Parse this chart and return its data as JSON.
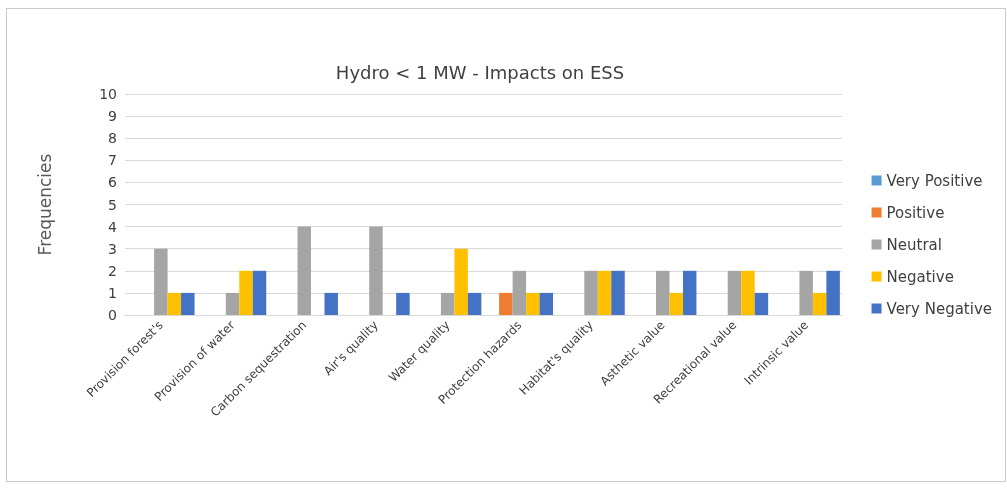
{
  "chart_data": {
    "type": "bar",
    "title": "Hydro < 1 MW - Impacts on ESS",
    "ylabel": "Frequencies",
    "categories": [
      "Provision forest's",
      "Provision of water",
      "Carbon sequestration",
      "Air's quality",
      "Water quality",
      "Protection hazards",
      "Habitat's quality",
      "Asthetic value",
      "Recreational value",
      "Intrinsic value"
    ],
    "series": [
      {
        "name": "Very Positive",
        "color": "#5b9bd5",
        "values": [
          0,
          0,
          0,
          0,
          0,
          0,
          0,
          0,
          0,
          0
        ]
      },
      {
        "name": "Positive",
        "color": "#ed7d31",
        "values": [
          0,
          0,
          0,
          0,
          0,
          1,
          0,
          0,
          0,
          0
        ]
      },
      {
        "name": "Neutral",
        "color": "#a5a5a5",
        "values": [
          3,
          1,
          4,
          4,
          1,
          2,
          2,
          2,
          2,
          2
        ]
      },
      {
        "name": "Negative",
        "color": "#ffc000",
        "values": [
          1,
          2,
          0,
          0,
          3,
          1,
          2,
          1,
          2,
          1
        ]
      },
      {
        "name": "Very Negative",
        "color": "#4472c4",
        "values": [
          1,
          2,
          1,
          1,
          1,
          1,
          2,
          2,
          1,
          2
        ]
      }
    ],
    "ylim": [
      0,
      10
    ],
    "yticks": [
      0,
      1,
      2,
      3,
      4,
      5,
      6,
      7,
      8,
      9,
      10
    ],
    "grid": "y",
    "legend": "right"
  }
}
